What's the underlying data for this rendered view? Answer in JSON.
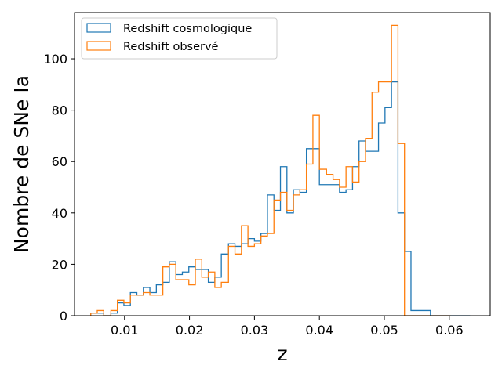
{
  "chart_data": {
    "type": "histogram",
    "xlabel": "z",
    "ylabel": "Nombre de SNe Ia",
    "xlim": [
      0.0023,
      0.0663
    ],
    "ylim": [
      0,
      118
    ],
    "xticks": [
      0.01,
      0.02,
      0.03,
      0.04,
      0.05,
      0.06
    ],
    "xtick_labels": [
      "0.01",
      "0.02",
      "0.03",
      "0.04",
      "0.05",
      "0.06"
    ],
    "yticks": [
      0,
      20,
      40,
      60,
      80,
      100
    ],
    "ytick_labels": [
      "0",
      "20",
      "40",
      "60",
      "80",
      "100"
    ],
    "legend_position": "upper-left",
    "grid": false,
    "series": [
      {
        "name": "Redshift cosmologique",
        "color": "#1f77b4",
        "edges": [
          0.0048,
          0.0058,
          0.0068,
          0.0079,
          0.0089,
          0.0099,
          0.0109,
          0.0119,
          0.0129,
          0.0139,
          0.0149,
          0.0159,
          0.0169,
          0.0179,
          0.0189,
          0.0199,
          0.0209,
          0.0219,
          0.0229,
          0.0239,
          0.0249,
          0.026,
          0.027,
          0.028,
          0.029,
          0.03,
          0.031,
          0.032,
          0.033,
          0.034,
          0.035,
          0.036,
          0.037,
          0.038,
          0.039,
          0.04,
          0.0411,
          0.0421,
          0.0431,
          0.0441,
          0.0451,
          0.0461,
          0.0471,
          0.0481,
          0.0491,
          0.0501,
          0.0511,
          0.0521,
          0.0531,
          0.0541,
          0.0551,
          0.0561,
          0.0571,
          0.0581,
          0.0592,
          0.0602,
          0.0612,
          0.0622,
          0.0632
        ],
        "counts": [
          1,
          1,
          0,
          1,
          5,
          4,
          9,
          8,
          11,
          9,
          12,
          13,
          21,
          16,
          17,
          19,
          18,
          18,
          13,
          15,
          24,
          28,
          27,
          28,
          30,
          29,
          32,
          47,
          41,
          58,
          40,
          49,
          48,
          65,
          65,
          51,
          51,
          51,
          48,
          49,
          58,
          68,
          64,
          64,
          75,
          81,
          91,
          40,
          25,
          2,
          2,
          2,
          0,
          0,
          0,
          0,
          0,
          0
        ]
      },
      {
        "name": "Redshift observé",
        "color": "#ff7f0e",
        "edges": [
          0.0048,
          0.0058,
          0.0068,
          0.0079,
          0.0089,
          0.0099,
          0.0109,
          0.0119,
          0.0129,
          0.0139,
          0.0149,
          0.0159,
          0.0169,
          0.0179,
          0.0189,
          0.0199,
          0.0209,
          0.0219,
          0.0229,
          0.0239,
          0.0249,
          0.026,
          0.027,
          0.028,
          0.029,
          0.03,
          0.031,
          0.032,
          0.033,
          0.034,
          0.035,
          0.036,
          0.037,
          0.038,
          0.039,
          0.04,
          0.0411,
          0.0421,
          0.0431,
          0.0441,
          0.0451,
          0.0461,
          0.0471,
          0.0481,
          0.0491,
          0.0501,
          0.0511,
          0.0521,
          0.0531,
          0.0541,
          0.0551,
          0.0561,
          0.0571,
          0.0581,
          0.0592,
          0.0602
        ],
        "counts": [
          1,
          2,
          0,
          2,
          6,
          5,
          8,
          8,
          9,
          8,
          8,
          19,
          20,
          14,
          14,
          12,
          22,
          15,
          17,
          11,
          13,
          27,
          24,
          35,
          27,
          28,
          31,
          32,
          45,
          48,
          41,
          47,
          49,
          59,
          78,
          57,
          55,
          53,
          50,
          58,
          52,
          60,
          69,
          87,
          91,
          91,
          113,
          67,
          0,
          0,
          0,
          0,
          0,
          0,
          0
        ]
      }
    ]
  }
}
